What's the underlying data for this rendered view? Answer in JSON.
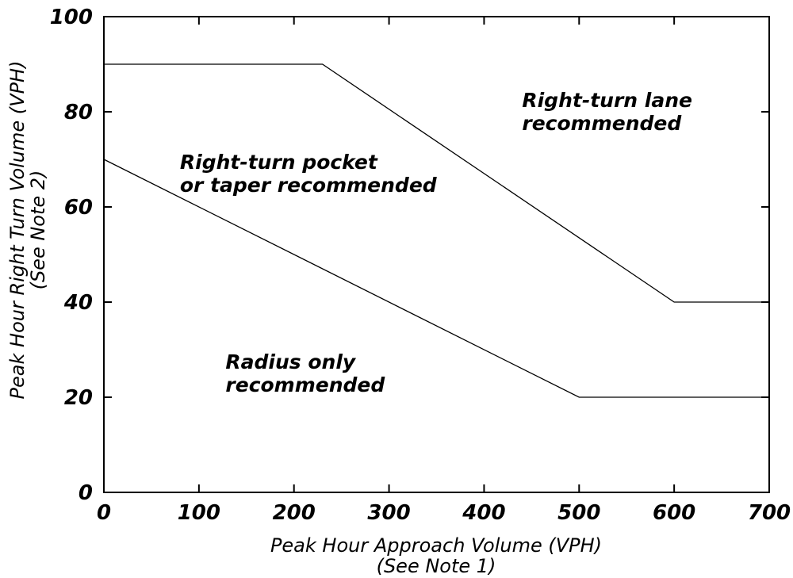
{
  "chart_data": {
    "type": "line",
    "title": "",
    "xlabel": "Peak Hour Approach Volume (VPH)",
    "xlabel_note": "(See Note 1)",
    "ylabel": "Peak Hour Right Turn Volume (VPH)",
    "ylabel_note": "(See Note 2)",
    "xlim": [
      0,
      700
    ],
    "ylim": [
      0,
      100
    ],
    "x_ticks": [
      "0",
      "100",
      "200",
      "300",
      "400",
      "500",
      "600",
      "700"
    ],
    "y_ticks": [
      "0",
      "20",
      "40",
      "60",
      "80",
      "100"
    ],
    "grid": false,
    "series": [
      {
        "x": [
          0,
          500,
          700
        ],
        "y": [
          70,
          20,
          20
        ]
      },
      {
        "x": [
          0,
          230,
          600,
          700
        ],
        "y": [
          90,
          90,
          40,
          40
        ]
      }
    ],
    "annotations": [
      {
        "lines": [
          "Right-turn lane",
          "recommended"
        ],
        "x": 440,
        "y": 81
      },
      {
        "lines": [
          "Right-turn pocket",
          "or taper recommended"
        ],
        "x": 80,
        "y": 68
      },
      {
        "lines": [
          "Radius only",
          "recommended"
        ],
        "x": 128,
        "y": 26
      }
    ]
  }
}
